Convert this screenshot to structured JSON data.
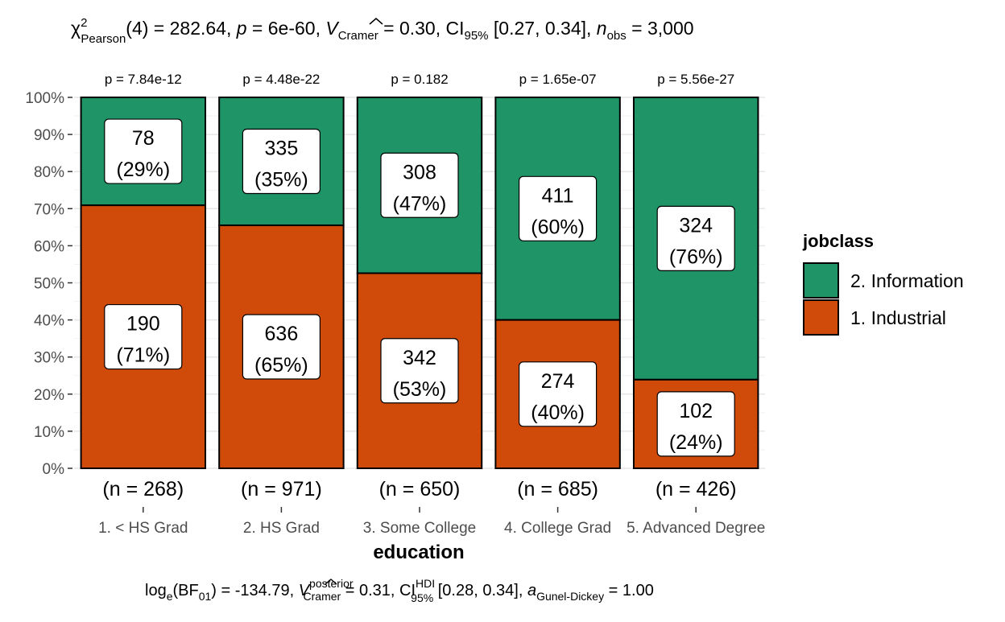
{
  "chart_data": {
    "type": "bar",
    "stacked": true,
    "normalized": true,
    "subtitle": {
      "chi": "χ",
      "chi_sup": "2",
      "chi_sub": "Pearson",
      "part1": "(4) = 282.64, ",
      "p_sym": "p",
      "part2": " = 6e-60, ",
      "v_sym": "V",
      "v_sub": "Cramer",
      "part3": " = 0.30, CI",
      "ci_sub": "95%",
      "part4": " [0.27, 0.34], ",
      "n_sym": "n",
      "n_sub": "obs",
      "part5": " = 3,000"
    },
    "caption": {
      "part1": "log",
      "log_sub": "e",
      "part2": "(BF",
      "bf_sub": "01",
      "part3": ") = -134.79, ",
      "v_sym": "V",
      "v_sup": "posterior",
      "v_sub": "Cramer",
      "part4": " = 0.31, CI",
      "ci_sup": "HDI",
      "ci_sub": "95%",
      "part5": " [0.28, 0.34], ",
      "a_sym": "a",
      "a_sub": "Gunel-Dickey",
      "part6": " = 1.00"
    },
    "xlabel": "education",
    "ylabel": "",
    "y_ticks": [
      "0%",
      "10%",
      "20%",
      "30%",
      "40%",
      "50%",
      "60%",
      "70%",
      "80%",
      "90%",
      "100%"
    ],
    "ylim": [
      0,
      100
    ],
    "categories": [
      "1. < HS Grad",
      "2. HS Grad",
      "3. Some College",
      "4. College Grad",
      "5. Advanced Degree"
    ],
    "n_labels": [
      "(n = 268)",
      "(n = 971)",
      "(n = 650)",
      "(n = 685)",
      "(n = 426)"
    ],
    "p_labels": [
      "p = 7.84e-12",
      "p = 4.48e-22",
      "p = 0.182",
      "p = 1.65e-07",
      "p = 5.56e-27"
    ],
    "series": [
      {
        "name": "1. Industrial",
        "color": "#D04B0A",
        "counts": [
          190,
          636,
          342,
          274,
          102
        ],
        "labels": [
          "(71%)",
          "(65%)",
          "(53%)",
          "(40%)",
          "(24%)"
        ],
        "values": [
          70.9,
          65.5,
          52.6,
          40.0,
          23.9
        ]
      },
      {
        "name": "2. Information",
        "color": "#1E9467",
        "counts": [
          78,
          335,
          308,
          411,
          324
        ],
        "labels": [
          "(29%)",
          "(35%)",
          "(47%)",
          "(60%)",
          "(76%)"
        ],
        "values": [
          29.1,
          34.5,
          47.4,
          60.0,
          76.1
        ]
      }
    ],
    "legend": {
      "title": "jobclass",
      "position": "right",
      "items": [
        "2. Information",
        "1. Industrial"
      ]
    },
    "grid": true
  }
}
